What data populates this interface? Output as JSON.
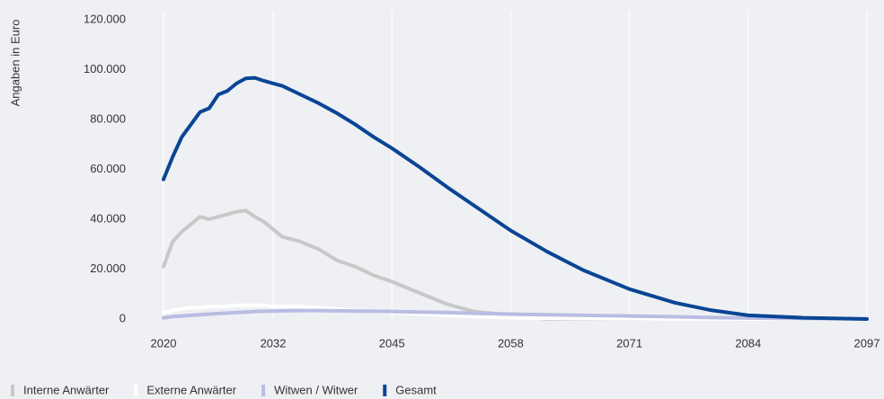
{
  "chart_data": {
    "type": "line",
    "y_axis_label": "Angaben in Euro",
    "x": [
      2020,
      2021,
      2022,
      2023,
      2024,
      2025,
      2026,
      2027,
      2028,
      2029,
      2030,
      2031,
      2032,
      2033,
      2035,
      2037,
      2039,
      2041,
      2043,
      2045,
      2048,
      2051,
      2054,
      2058,
      2062,
      2066,
      2071,
      2076,
      2080,
      2084,
      2090,
      2097
    ],
    "series": [
      {
        "name": "Interne Anwärter",
        "color": "#c8c8c8",
        "values": [
          21000,
          31000,
          35000,
          38000,
          41000,
          40000,
          41000,
          42000,
          43000,
          43500,
          41000,
          39000,
          36000,
          33000,
          31000,
          28000,
          23500,
          21000,
          17500,
          15000,
          10500,
          6000,
          3000,
          1500,
          0,
          0,
          0,
          0,
          0,
          0,
          0,
          0
        ]
      },
      {
        "name": "Externe Anwärter",
        "color": "#ffffff",
        "values": [
          2500,
          3500,
          4000,
          4500,
          4500,
          5000,
          5000,
          5000,
          5500,
          5500,
          5500,
          5500,
          5000,
          5000,
          5000,
          4500,
          4000,
          3500,
          3000,
          2500,
          2000,
          1500,
          1000,
          500,
          300,
          200,
          100,
          0,
          0,
          0,
          0,
          0
        ]
      },
      {
        "name": "Witwen / Witwer",
        "color": "#b9bde3",
        "values": [
          500,
          1000,
          1200,
          1500,
          1700,
          2000,
          2200,
          2400,
          2600,
          2800,
          3000,
          3100,
          3200,
          3300,
          3400,
          3400,
          3300,
          3200,
          3100,
          3000,
          2800,
          2600,
          2300,
          2000,
          1700,
          1500,
          1200,
          900,
          600,
          400,
          200,
          100
        ]
      },
      {
        "name": "Gesamt",
        "color": "#0a4595",
        "values": [
          56000,
          65000,
          73000,
          78000,
          83000,
          84500,
          90000,
          91500,
          94500,
          96500,
          96700,
          95500,
          94500,
          93500,
          90000,
          86500,
          82500,
          78000,
          73000,
          68500,
          61000,
          53000,
          45500,
          35500,
          27000,
          19500,
          12000,
          6500,
          3500,
          1500,
          500,
          0
        ]
      }
    ],
    "xlim": [
      2020,
      2097
    ],
    "xticks": [
      2020,
      2032,
      2045,
      2058,
      2071,
      2084,
      2097
    ],
    "ylim": [
      0,
      120000
    ],
    "yticks": [
      0,
      {
        "value": 20000,
        "label": "20.000"
      },
      {
        "value": 40000,
        "label": "40.000"
      },
      {
        "value": 60000,
        "label": "60.000"
      },
      {
        "value": 80000,
        "label": "80.000"
      },
      {
        "value": 100000,
        "label": "100.000"
      },
      {
        "value": 120000,
        "label": "120.000"
      }
    ],
    "grid": true
  }
}
